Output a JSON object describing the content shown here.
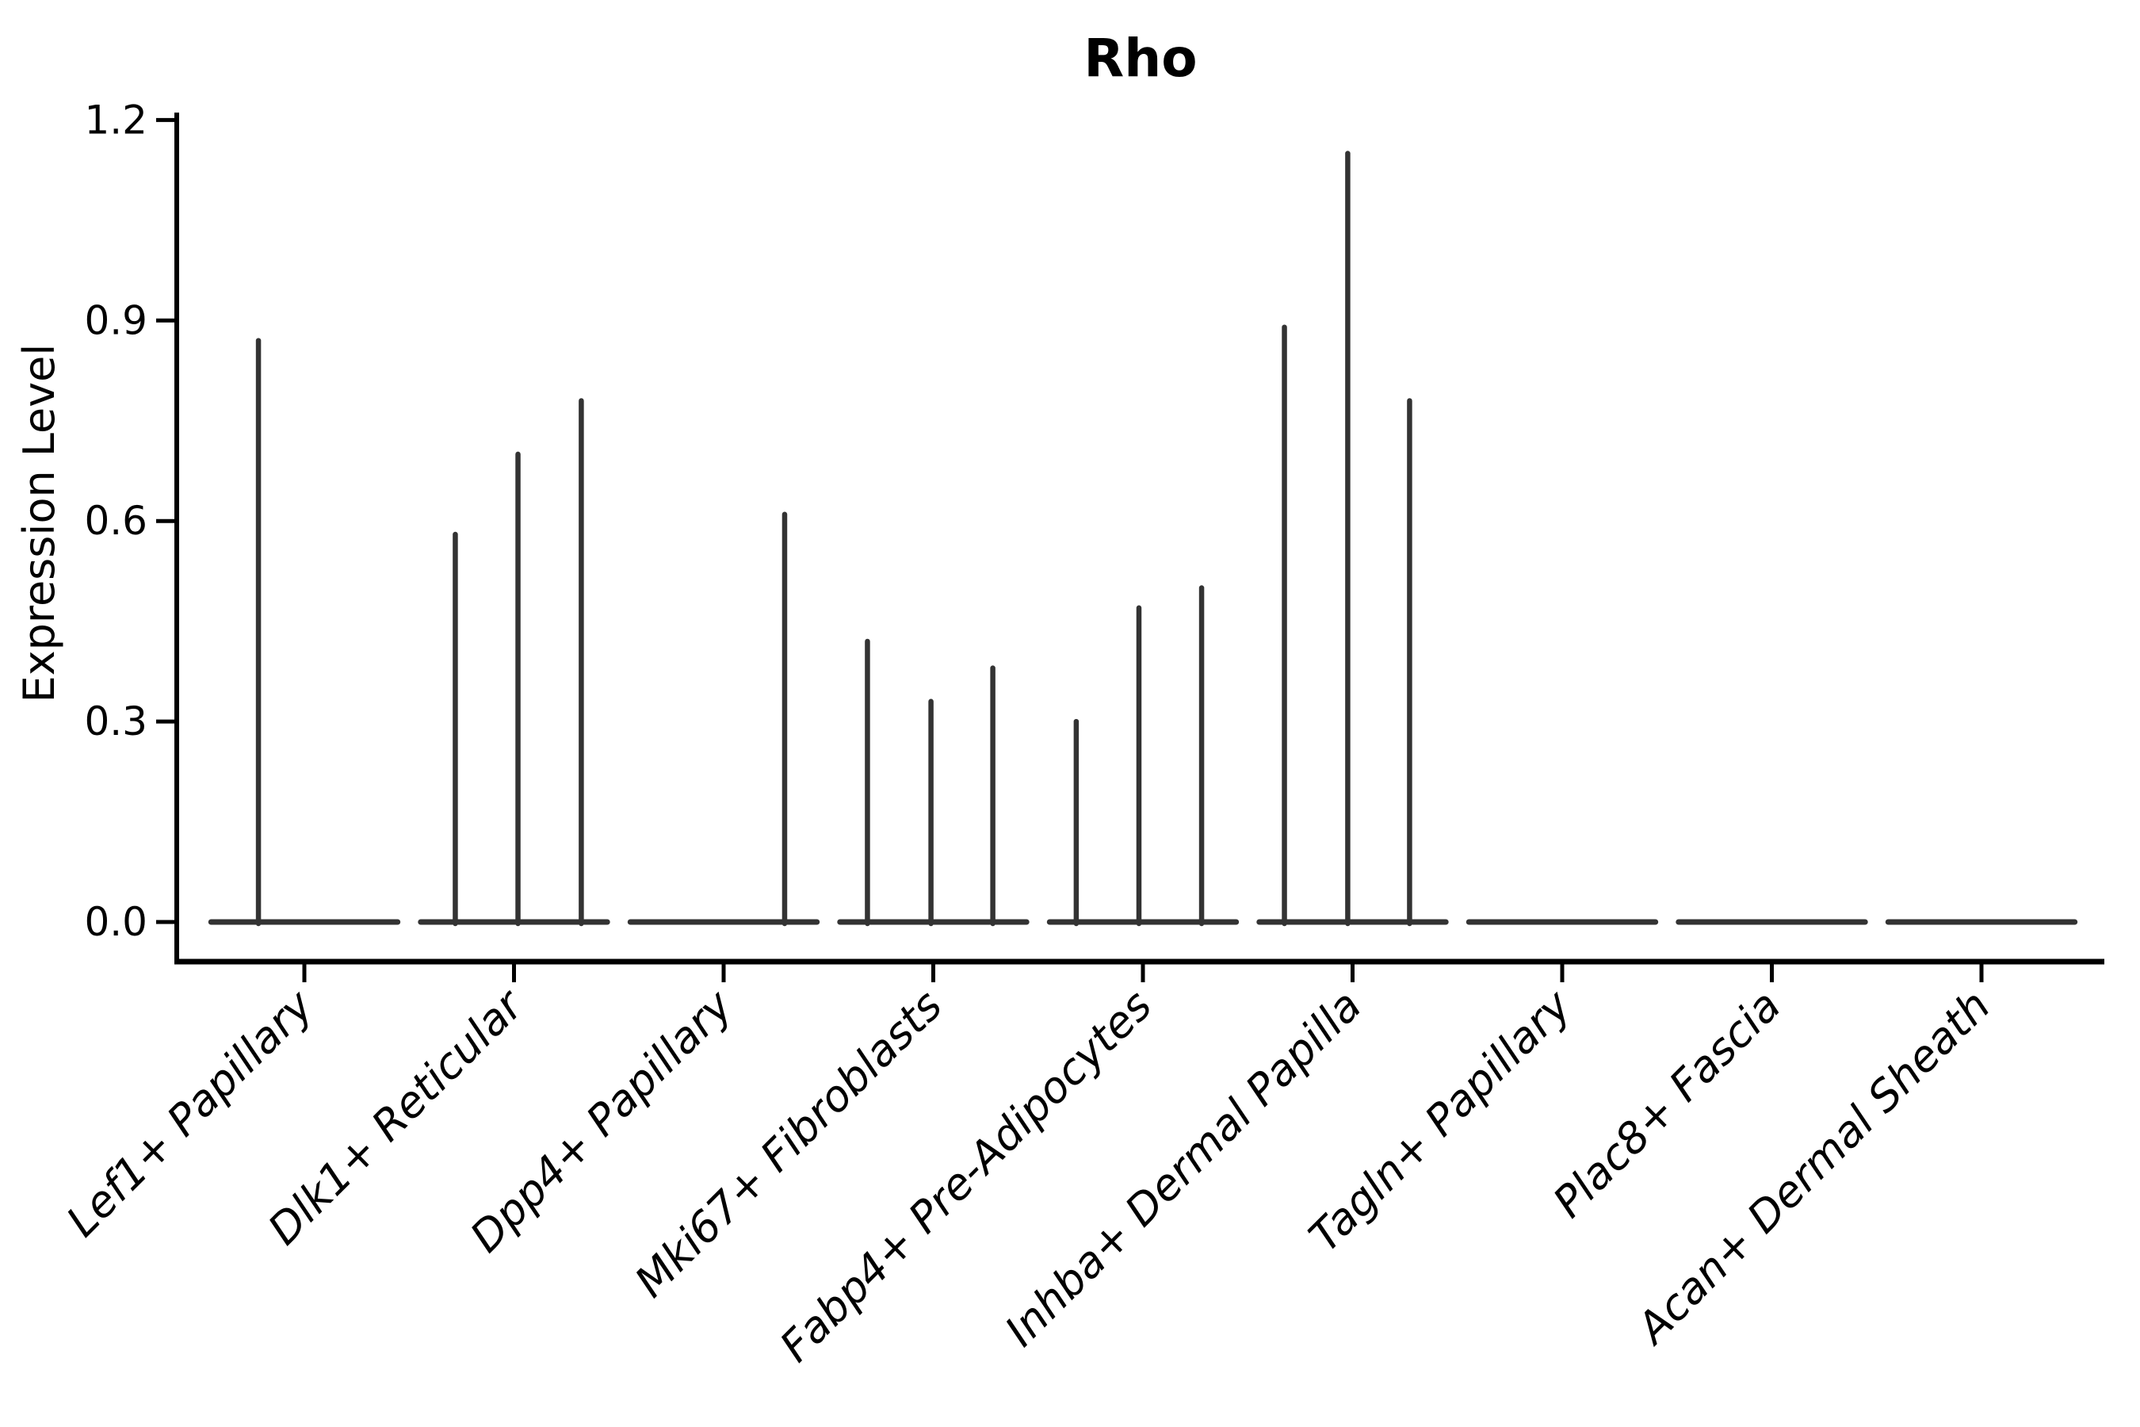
{
  "title": "Rho",
  "axes": {
    "ylabel": "Expression Level",
    "ytick_labels": [
      "0.0",
      "0.3",
      "0.6",
      "0.9",
      "1.2"
    ]
  },
  "chart_data": {
    "type": "violin",
    "title": "Rho",
    "xlabel": "",
    "ylabel": "Expression Level",
    "yticks": [
      0.0,
      0.3,
      0.6,
      0.9,
      1.2
    ],
    "ylim": [
      -0.07,
      1.27
    ],
    "grid": false,
    "legend": "none",
    "line_color": "#333333",
    "axis_color": "#000000",
    "x_label_style": "italic, rotated 45deg",
    "categories": [
      "Lef1+ Papillary",
      "Dlk1+ Reticular",
      "Dpp4+ Papillary",
      "Mki67+ Fibroblasts",
      "Fabp4+ Pre-Adipocytes",
      "Inhba+ Dermal Papilla",
      "Tagln+ Papillary",
      "Plac8+ Fascia",
      "Acan+ Dermal Sheath"
    ],
    "violin_halfwidth": 0.445,
    "violins": [
      {
        "category": "Lef1+ Papillary",
        "spikes": [
          {
            "offset": -0.219,
            "value": 0.87
          }
        ]
      },
      {
        "category": "Dlk1+ Reticular",
        "spikes": [
          {
            "offset": -0.28,
            "value": 0.58
          },
          {
            "offset": 0.019,
            "value": 0.7
          },
          {
            "offset": 0.321,
            "value": 0.78
          }
        ]
      },
      {
        "category": "Dpp4+ Papillary",
        "spikes": [
          {
            "offset": 0.291,
            "value": 0.61
          }
        ]
      },
      {
        "category": "Mki67+ Fibroblasts",
        "spikes": [
          {
            "offset": -0.314,
            "value": 0.42
          },
          {
            "offset": -0.011,
            "value": 0.33
          },
          {
            "offset": 0.284,
            "value": 0.38
          }
        ]
      },
      {
        "category": "Fabp4+ Pre-Adipocytes",
        "spikes": [
          {
            "offset": -0.318,
            "value": 0.3
          },
          {
            "offset": -0.019,
            "value": 0.47
          },
          {
            "offset": 0.28,
            "value": 0.5
          }
        ]
      },
      {
        "category": "Inhba+ Dermal Papilla",
        "spikes": [
          {
            "offset": -0.325,
            "value": 0.89
          },
          {
            "offset": -0.023,
            "value": 1.15
          },
          {
            "offset": 0.272,
            "value": 0.78
          }
        ]
      },
      {
        "category": "Tagln+ Papillary",
        "spikes": []
      },
      {
        "category": "Plac8+ Fascia",
        "spikes": []
      },
      {
        "category": "Acan+ Dermal Sheath",
        "spikes": []
      }
    ]
  }
}
